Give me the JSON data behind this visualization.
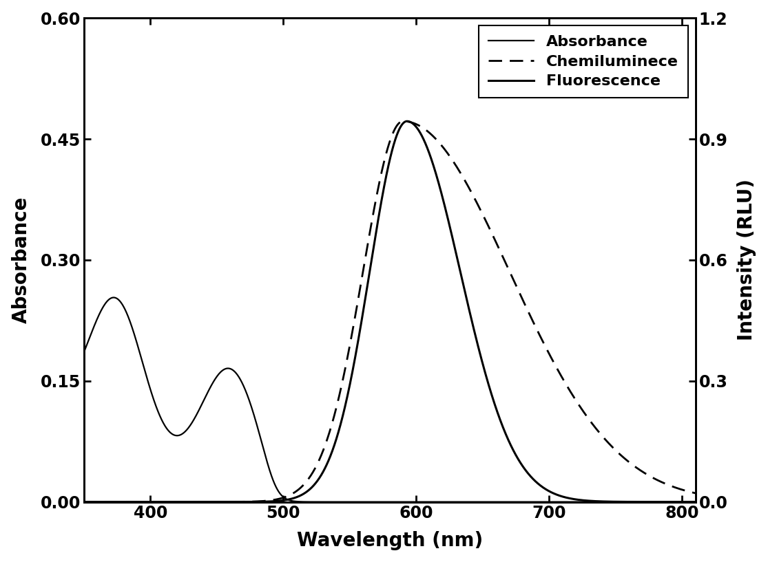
{
  "xlabel": "Wavelength (nm)",
  "ylabel_left": "Absorbance",
  "ylabel_right": "Intensity (RLU)",
  "xlim": [
    350,
    810
  ],
  "ylim_left": [
    0.0,
    0.6
  ],
  "ylim_right": [
    0.0,
    1.2
  ],
  "xticks": [
    400,
    500,
    600,
    700,
    800
  ],
  "yticks_left": [
    0.0,
    0.15,
    0.3,
    0.45,
    0.6
  ],
  "yticks_right": [
    0.0,
    0.3,
    0.6,
    0.9,
    1.2
  ],
  "legend_labels": [
    "Absorbance",
    "Chemiluminece",
    "Fluorescence"
  ],
  "background_color": "#ffffff",
  "line_color": "#000000",
  "label_fontsize": 20,
  "tick_fontsize": 17,
  "legend_fontsize": 16
}
